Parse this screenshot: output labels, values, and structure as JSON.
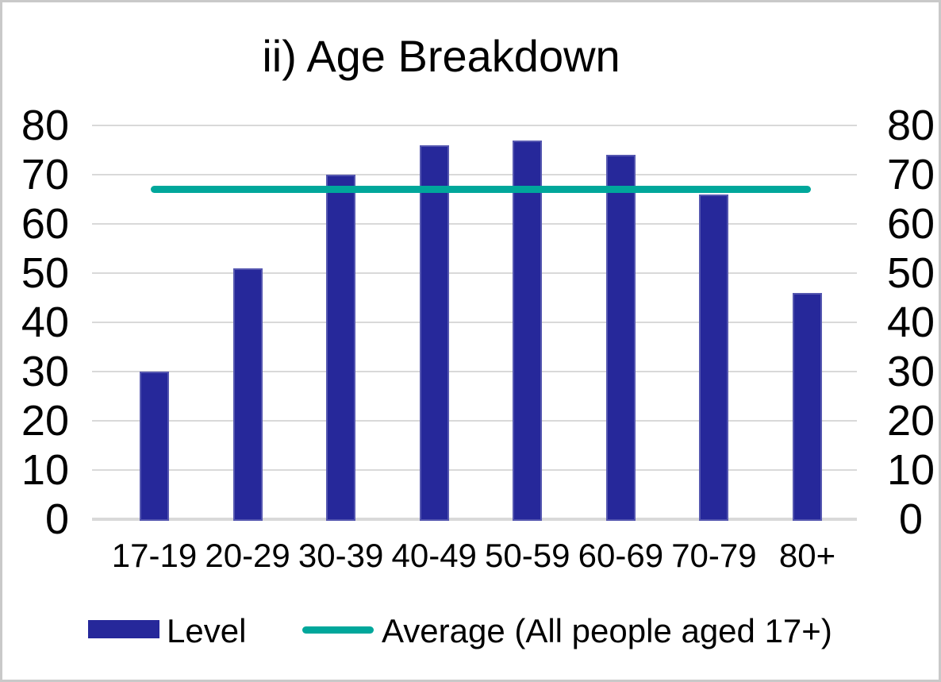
{
  "chart_data": {
    "type": "bar",
    "title": "ii) Age Breakdown",
    "categories": [
      "17-19",
      "20-29",
      "30-39",
      "40-49",
      "50-59",
      "60-69",
      "70-79",
      "80+"
    ],
    "series": [
      {
        "name": "Level",
        "type": "bar",
        "values": [
          30,
          51,
          70,
          76,
          77,
          74,
          66,
          46
        ],
        "color": "#26289A"
      },
      {
        "name": "Average (All people aged 17+)",
        "type": "line",
        "value": 67,
        "color": "#00A79B"
      }
    ],
    "y_axis": {
      "min": 0,
      "max": 80,
      "step": 10,
      "ticks": [
        0,
        10,
        20,
        30,
        40,
        50,
        60,
        70,
        80
      ],
      "secondary_axis": true
    },
    "xlabel": "",
    "ylabel": "",
    "grid": true,
    "gridline_color": "#D9D9D9",
    "legend_position": "bottom"
  }
}
